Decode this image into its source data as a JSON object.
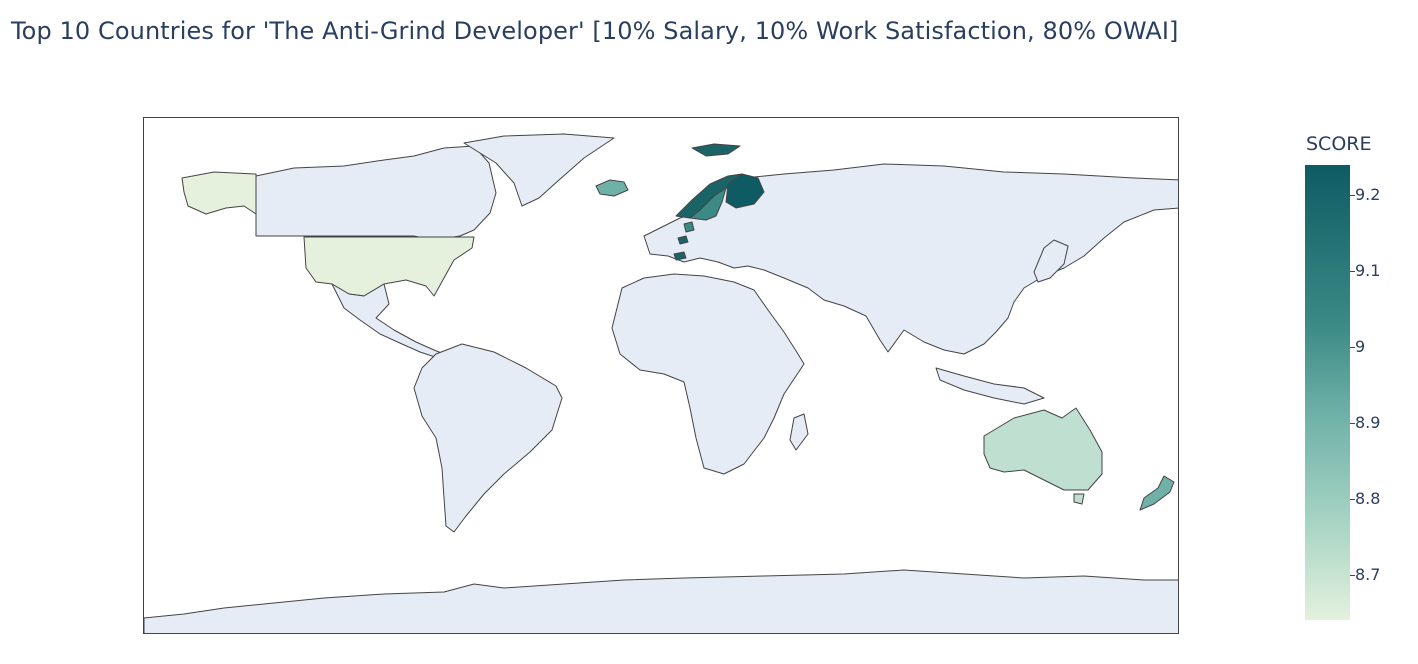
{
  "title": "Top 10 Countries for 'The Anti-Grind Developer' [10% Salary, 10% Work Satisfaction, 80% OWAI]",
  "colorbar": {
    "title": "SCORE",
    "ticks": [
      "9.2",
      "9.1",
      "9",
      "8.9",
      "8.8",
      "8.7"
    ]
  },
  "chart_data": {
    "type": "choropleth",
    "colorscale": [
      "#e3f1dd",
      "#a6d3c3",
      "#6fb1a7",
      "#3b8a86",
      "#0f5b63"
    ],
    "zrange": [
      8.65,
      9.24
    ],
    "land_color": "#e5ecf6",
    "colorbar_title": "SCORE",
    "colorbar_ticks": [
      8.7,
      8.8,
      8.9,
      9.0,
      9.1,
      9.2
    ],
    "highlighted": [
      {
        "country": "Finland",
        "score": 9.2
      },
      {
        "country": "Norway",
        "score": 9.15
      },
      {
        "country": "Netherlands",
        "score": 9.15
      },
      {
        "country": "Switzerland",
        "score": 9.15
      },
      {
        "country": "Sweden",
        "score": 9.05
      },
      {
        "country": "Denmark",
        "score": 9.0
      },
      {
        "country": "New Zealand",
        "score": 8.93
      },
      {
        "country": "Iceland",
        "score": 8.9
      },
      {
        "country": "Australia",
        "score": 8.78
      },
      {
        "country": "United States",
        "score": 8.66
      }
    ]
  }
}
